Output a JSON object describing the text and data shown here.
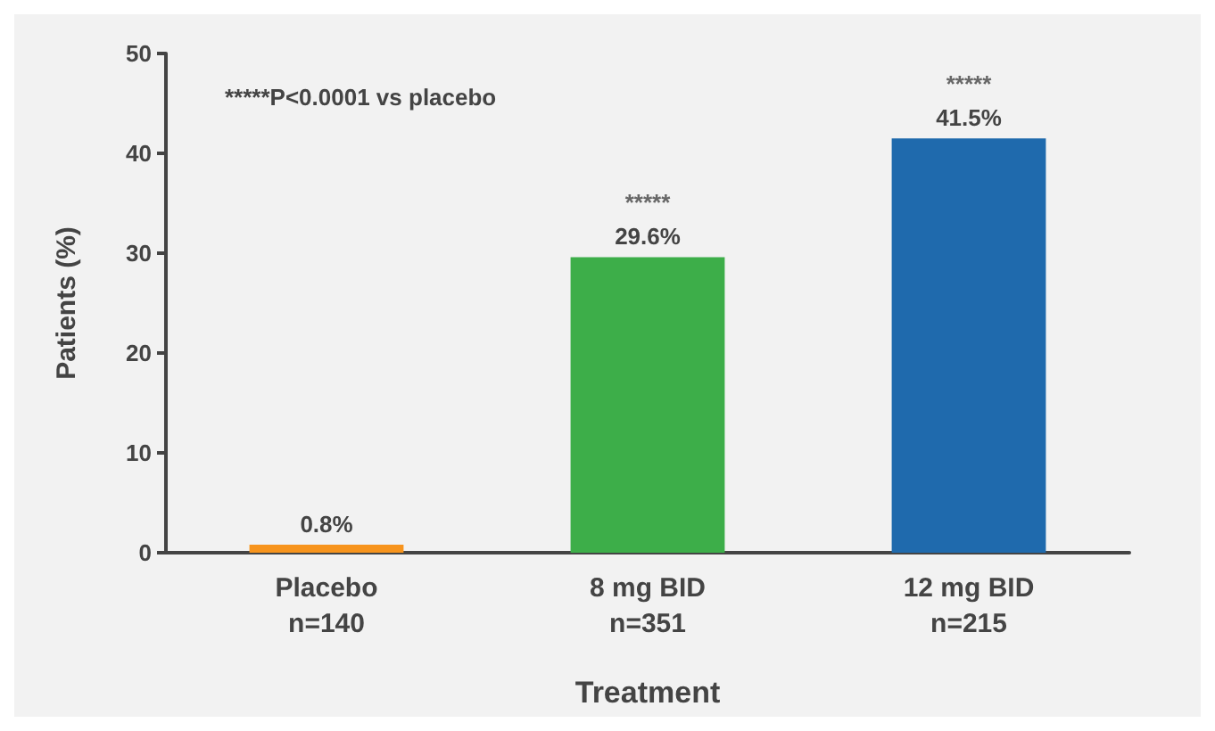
{
  "chart_data": {
    "type": "bar",
    "xlabel": "Treatment",
    "ylabel": "Patients (%)",
    "categories": [
      "Placebo\nn=140",
      "8 mg BID\nn=351",
      "12 mg BID\nn=215"
    ],
    "values": [
      0.8,
      29.6,
      41.5
    ],
    "colors": [
      "#f7941d",
      "#3dae49",
      "#1f6aad"
    ],
    "value_labels": [
      "0.8%",
      "29.6%",
      "41.5%"
    ],
    "ylim": [
      0,
      50
    ],
    "yticks": [
      0,
      10,
      20,
      30,
      40,
      50
    ],
    "grid": false,
    "annotations": [
      "*****P<0.0001 vs placebo",
      {
        "text": "*****",
        "x": "8 mg BID\nn=351",
        "y": 29.6
      },
      {
        "text": "*****",
        "x": "12 mg BID\nn=215",
        "y": 41.5
      }
    ]
  }
}
